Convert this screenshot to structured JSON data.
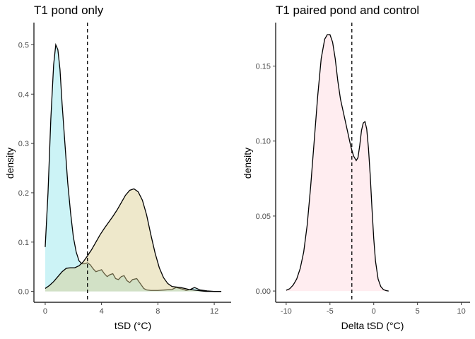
{
  "chart_data": [
    {
      "type": "area",
      "title": "T1 pond only",
      "xlabel": "tSD (°C)",
      "ylabel": "density",
      "xlim": [
        -0.8,
        13.2
      ],
      "ylim": [
        -0.022,
        0.545
      ],
      "xticks": [
        0,
        4,
        8,
        12
      ],
      "xtick_labels": [
        "0",
        "4",
        "8",
        "12"
      ],
      "yticks": [
        0.0,
        0.1,
        0.2,
        0.3,
        0.4,
        0.5
      ],
      "ytick_labels": [
        "0.0",
        "0.1",
        "0.2",
        "0.3",
        "0.4",
        "0.5"
      ],
      "vline": 3.0,
      "grid": false,
      "legend": "none",
      "series": [
        {
          "color": "#8fe5ea",
          "x": [
            0.0,
            0.2,
            0.4,
            0.6,
            0.75,
            0.9,
            1.05,
            1.2,
            1.4,
            1.6,
            1.8,
            2.0,
            2.2,
            2.4,
            2.6,
            2.8,
            3.0,
            3.2,
            3.4,
            3.6,
            3.8,
            4.0,
            4.2,
            4.4,
            4.6,
            4.8,
            5.0,
            5.2,
            5.4,
            5.6,
            5.8,
            6.0,
            6.2,
            6.5,
            6.8,
            7.0,
            7.2,
            7.5,
            8.0,
            8.5,
            9.0,
            9.3,
            9.7,
            10.0,
            10.3,
            10.6,
            11.0,
            11.5,
            12.0,
            12.5
          ],
          "y": [
            0.09,
            0.2,
            0.35,
            0.46,
            0.5,
            0.49,
            0.45,
            0.38,
            0.3,
            0.22,
            0.16,
            0.11,
            0.08,
            0.062,
            0.056,
            0.056,
            0.058,
            0.054,
            0.046,
            0.04,
            0.042,
            0.044,
            0.036,
            0.03,
            0.034,
            0.036,
            0.026,
            0.024,
            0.03,
            0.032,
            0.022,
            0.018,
            0.024,
            0.026,
            0.014,
            0.006,
            0.003,
            0.002,
            0.002,
            0.003,
            0.004,
            0.008,
            0.005,
            0.002,
            0.004,
            0.008,
            0.003,
            0.001,
            0.0,
            0.0
          ]
        },
        {
          "color": "#d9cc8c",
          "x": [
            0.0,
            0.3,
            0.6,
            0.9,
            1.2,
            1.5,
            1.8,
            2.1,
            2.4,
            2.7,
            3.0,
            3.3,
            3.6,
            3.9,
            4.2,
            4.5,
            4.8,
            5.1,
            5.4,
            5.7,
            6.0,
            6.3,
            6.6,
            6.9,
            7.2,
            7.5,
            7.8,
            8.1,
            8.4,
            8.7,
            9.0,
            9.3,
            9.6,
            9.9,
            10.2,
            10.5,
            10.8,
            11.1,
            11.4,
            11.7,
            12.0,
            12.5
          ],
          "y": [
            0.006,
            0.012,
            0.02,
            0.03,
            0.04,
            0.047,
            0.048,
            0.048,
            0.052,
            0.06,
            0.072,
            0.085,
            0.1,
            0.115,
            0.128,
            0.14,
            0.152,
            0.165,
            0.18,
            0.195,
            0.205,
            0.208,
            0.202,
            0.185,
            0.155,
            0.115,
            0.078,
            0.048,
            0.028,
            0.016,
            0.01,
            0.009,
            0.008,
            0.006,
            0.004,
            0.003,
            0.002,
            0.001,
            0.0,
            0.0,
            0.0,
            0.0
          ]
        }
      ]
    },
    {
      "type": "area",
      "title": "T1 paired pond and control",
      "xlabel": "Delta tSD (°C)",
      "ylabel": "density",
      "xlim": [
        -11.2,
        11.0
      ],
      "ylim": [
        -0.0075,
        0.179
      ],
      "xticks": [
        -10,
        -5,
        0,
        5,
        10
      ],
      "xtick_labels": [
        "-10",
        "-5",
        "0",
        "5",
        "10"
      ],
      "yticks": [
        0.0,
        0.05,
        0.1,
        0.15
      ],
      "ytick_labels": [
        "0.00",
        "0.05",
        "0.10",
        "0.15"
      ],
      "vline": -2.5,
      "grid": false,
      "legend": "none",
      "series": [
        {
          "color": "#ffd6de",
          "x": [
            -10.0,
            -9.6,
            -9.2,
            -8.8,
            -8.4,
            -8.0,
            -7.6,
            -7.2,
            -6.8,
            -6.4,
            -6.0,
            -5.6,
            -5.3,
            -5.0,
            -4.7,
            -4.4,
            -4.1,
            -3.8,
            -3.5,
            -3.2,
            -2.9,
            -2.6,
            -2.3,
            -2.0,
            -1.8,
            -1.6,
            -1.4,
            -1.2,
            -1.0,
            -0.8,
            -0.6,
            -0.4,
            -0.2,
            0.0,
            0.2,
            0.5,
            0.8,
            1.1,
            1.4,
            1.7
          ],
          "y": [
            0.0005,
            0.0015,
            0.004,
            0.008,
            0.015,
            0.026,
            0.044,
            0.07,
            0.1,
            0.13,
            0.155,
            0.168,
            0.171,
            0.171,
            0.166,
            0.155,
            0.14,
            0.128,
            0.12,
            0.112,
            0.104,
            0.096,
            0.09,
            0.087,
            0.089,
            0.097,
            0.107,
            0.112,
            0.113,
            0.108,
            0.095,
            0.077,
            0.055,
            0.035,
            0.02,
            0.008,
            0.003,
            0.001,
            0.0003,
            0.0
          ]
        }
      ]
    }
  ]
}
